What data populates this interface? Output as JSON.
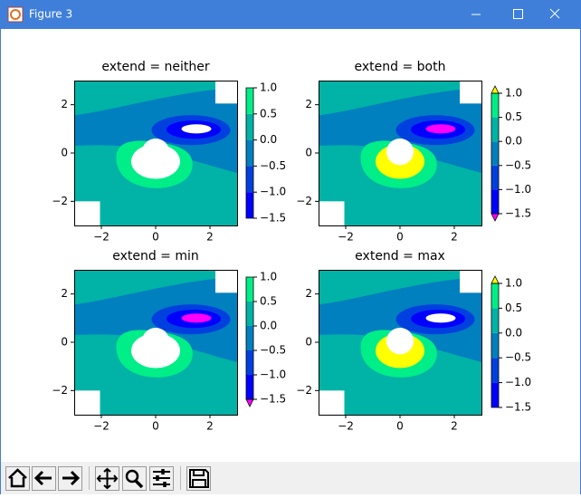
{
  "window": {
    "title": "Figure 3"
  },
  "plots": [
    {
      "title": "extend = neither",
      "xlim": [
        -3,
        3
      ],
      "ylim": [
        -3,
        3
      ],
      "xticks": [
        {
          "value": -2,
          "label": "−2"
        },
        0,
        2
      ],
      "yticks": [
        {
          "value": -2,
          "label": "−2"
        },
        0,
        2
      ],
      "colorbar_lim": [
        -1.5,
        1.0
      ],
      "colorbar_ticks": [
        {
          "value": -1.5,
          "label": "−1.5"
        },
        {
          "value": -1.0,
          "label": "−1.0"
        },
        {
          "value": -0.5,
          "label": "−0.5"
        },
        {
          "value": 0,
          "label": "0.0"
        },
        0.5,
        {
          "value": 1.0,
          "label": "1.0"
        }
      ]
    },
    {
      "title": "extend = both",
      "xlim": [
        -3,
        3
      ],
      "ylim": [
        -3,
        3
      ],
      "xticks": [
        {
          "value": -2,
          "label": "−2"
        },
        0,
        2
      ],
      "yticks": [
        {
          "value": -2,
          "label": "−2"
        },
        0,
        2
      ],
      "colorbar_lim": [
        -1.5,
        1.0
      ],
      "colorbar_ticks": [
        {
          "value": -1.5,
          "label": "−1.5"
        },
        {
          "value": -1.0,
          "label": "−1.0"
        },
        {
          "value": -0.5,
          "label": "−0.5"
        },
        {
          "value": 0,
          "label": "0.0"
        },
        0.5,
        {
          "value": 1.0,
          "label": "1.0"
        }
      ]
    },
    {
      "title": "extend = min",
      "xlim": [
        -3,
        3
      ],
      "ylim": [
        -3,
        3
      ],
      "xticks": [
        {
          "value": -2,
          "label": "−2"
        },
        0,
        2
      ],
      "yticks": [
        {
          "value": -2,
          "label": "−2"
        },
        0,
        2
      ],
      "colorbar_lim": [
        -1.5,
        1.0
      ],
      "colorbar_ticks": [
        {
          "value": -1.5,
          "label": "−1.5"
        },
        {
          "value": -1.0,
          "label": "−1.0"
        },
        {
          "value": -0.5,
          "label": "−0.5"
        },
        {
          "value": 0,
          "label": "0.0"
        },
        0.5,
        {
          "value": 1.0,
          "label": "1.0"
        }
      ]
    },
    {
      "title": "extend = max",
      "xlim": [
        -3,
        3
      ],
      "ylim": [
        -3,
        3
      ],
      "xticks": [
        {
          "value": -2,
          "label": "−2"
        },
        0,
        2
      ],
      "yticks": [
        {
          "value": -2,
          "label": "−2"
        },
        0,
        2
      ],
      "colorbar_lim": [
        -1.5,
        1.0
      ],
      "colorbar_ticks": [
        {
          "value": -1.5,
          "label": "−1.5"
        },
        {
          "value": -1.0,
          "label": "−1.0"
        },
        {
          "value": -0.5,
          "label": "−0.5"
        },
        {
          "value": 0,
          "label": "0.0"
        },
        0.5,
        {
          "value": 1.0,
          "label": "1.0"
        }
      ]
    }
  ]
}
